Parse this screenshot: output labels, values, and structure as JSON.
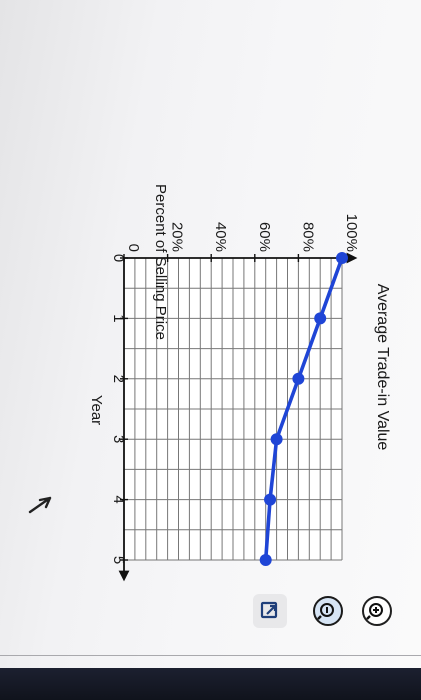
{
  "chart_data": {
    "type": "line",
    "title": "Average Trade-in Value",
    "xlabel": "Year",
    "ylabel": "Percent of Selling Price",
    "x": [
      0,
      1,
      2,
      3,
      4,
      5
    ],
    "series": [
      {
        "values": [
          100,
          90,
          80,
          70,
          67,
          65
        ]
      }
    ],
    "xlim": [
      0,
      5
    ],
    "ylim": [
      0,
      100
    ],
    "x_ticks": [
      "0",
      "1",
      "2",
      "3",
      "4",
      "5"
    ],
    "y_ticks": [
      "0",
      "20%",
      "40%",
      "60%",
      "80%",
      "100%"
    ],
    "grid": true,
    "line_color": "#1f45d6",
    "marker_color": "#1f45d6"
  },
  "toolbar": {
    "icons": [
      "zoom-in-icon",
      "zoom-out-icon",
      "pop-out-icon"
    ]
  }
}
